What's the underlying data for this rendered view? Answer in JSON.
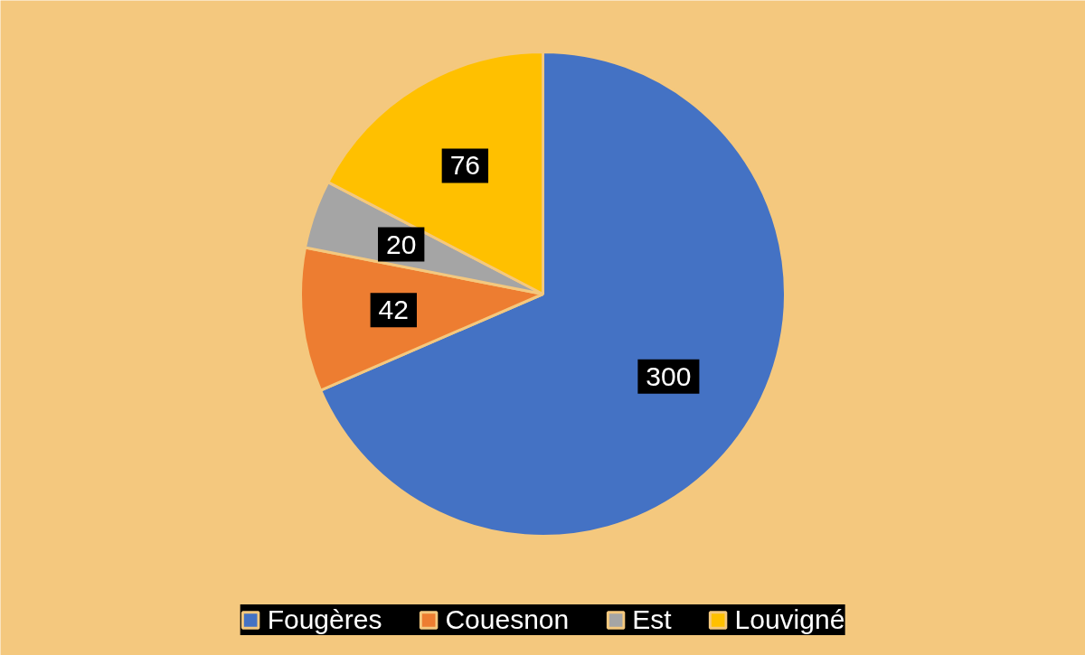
{
  "chart_data": {
    "type": "pie",
    "categories": [
      "Fougères",
      "Couesnon",
      "Est",
      "Louvigné"
    ],
    "values": [
      300,
      42,
      20,
      76
    ],
    "colors": [
      "#4472c4",
      "#ed7d31",
      "#a5a5a5",
      "#ffc000"
    ],
    "data_labels": true,
    "legend": "bottom"
  }
}
